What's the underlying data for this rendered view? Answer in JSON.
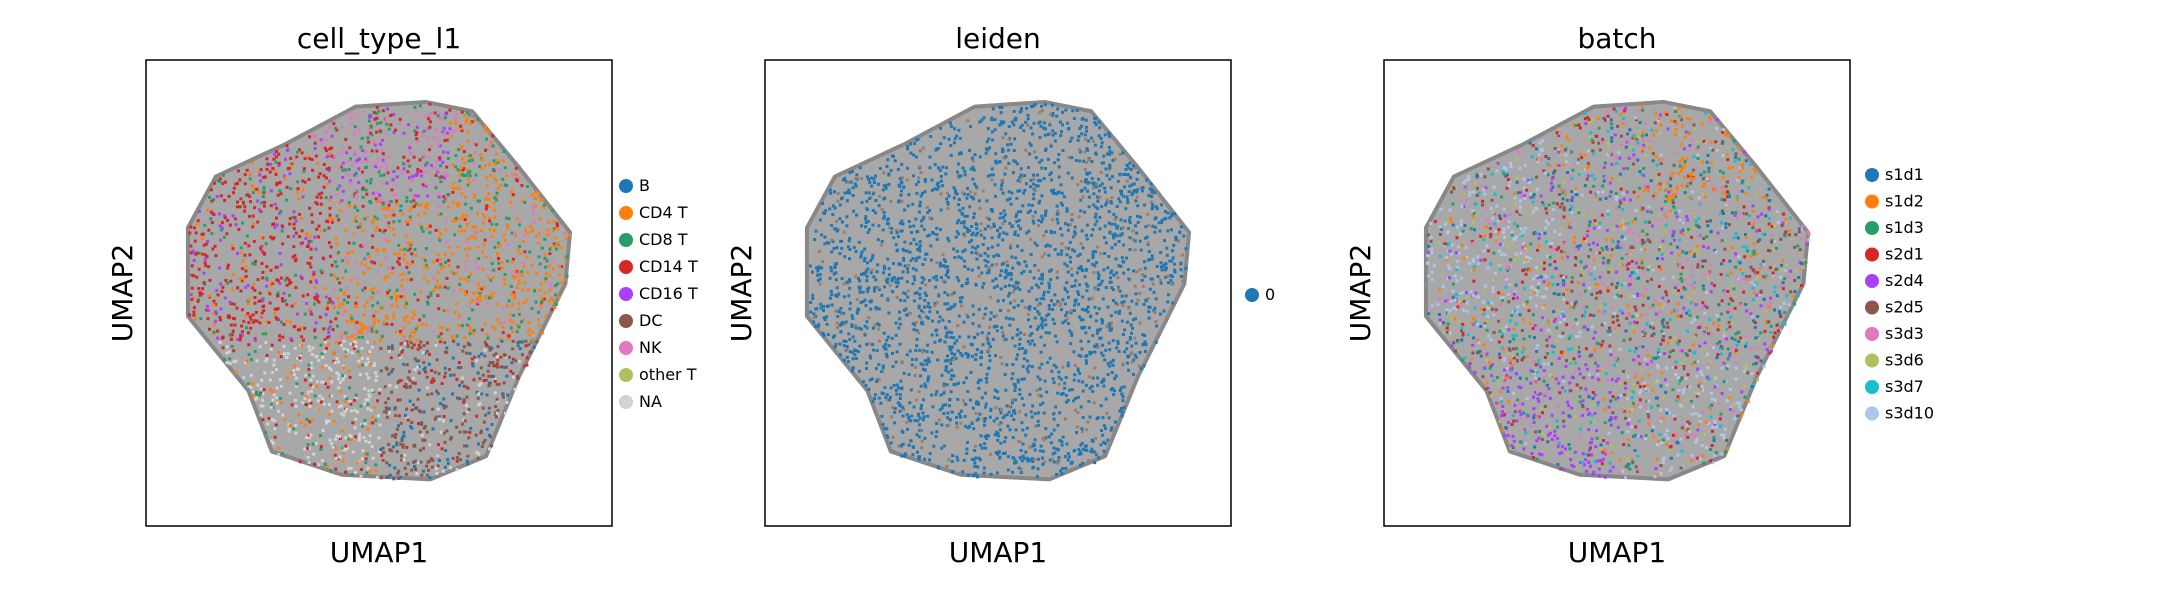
{
  "chart_data": [
    {
      "type": "scatter",
      "title": "cell_type_l1",
      "xlabel": "UMAP1",
      "ylabel": "UMAP2",
      "grid": false,
      "legend_position": "right",
      "series": [
        {
          "name": "B",
          "color": "#1f77b4"
        },
        {
          "name": "CD4 T",
          "color": "#ff7f0e"
        },
        {
          "name": "CD8 T",
          "color": "#279e68"
        },
        {
          "name": "CD14 T",
          "color": "#d62728"
        },
        {
          "name": "CD16 T",
          "color": "#aa40fc"
        },
        {
          "name": "DC",
          "color": "#8c564b"
        },
        {
          "name": "NK",
          "color": "#e377c2"
        },
        {
          "name": "other T",
          "color": "#b5bd61"
        },
        {
          "name": "NA",
          "color": "#d3d3d3"
        }
      ]
    },
    {
      "type": "scatter",
      "title": "leiden",
      "xlabel": "UMAP1",
      "ylabel": "UMAP2",
      "grid": false,
      "legend_position": "right",
      "series": [
        {
          "name": "0",
          "color": "#1f77b4"
        }
      ]
    },
    {
      "type": "scatter",
      "title": "batch",
      "xlabel": "UMAP1",
      "ylabel": "UMAP2",
      "grid": false,
      "legend_position": "right",
      "series": [
        {
          "name": "s1d1",
          "color": "#1f77b4"
        },
        {
          "name": "s1d2",
          "color": "#ff7f0e"
        },
        {
          "name": "s1d3",
          "color": "#279e68"
        },
        {
          "name": "s2d1",
          "color": "#d62728"
        },
        {
          "name": "s2d4",
          "color": "#aa40fc"
        },
        {
          "name": "s2d5",
          "color": "#8c564b"
        },
        {
          "name": "s3d3",
          "color": "#e377c2"
        },
        {
          "name": "s3d6",
          "color": "#b5bd61"
        },
        {
          "name": "s3d7",
          "color": "#17becf"
        },
        {
          "name": "s3d10",
          "color": "#aec7e8"
        }
      ]
    }
  ]
}
